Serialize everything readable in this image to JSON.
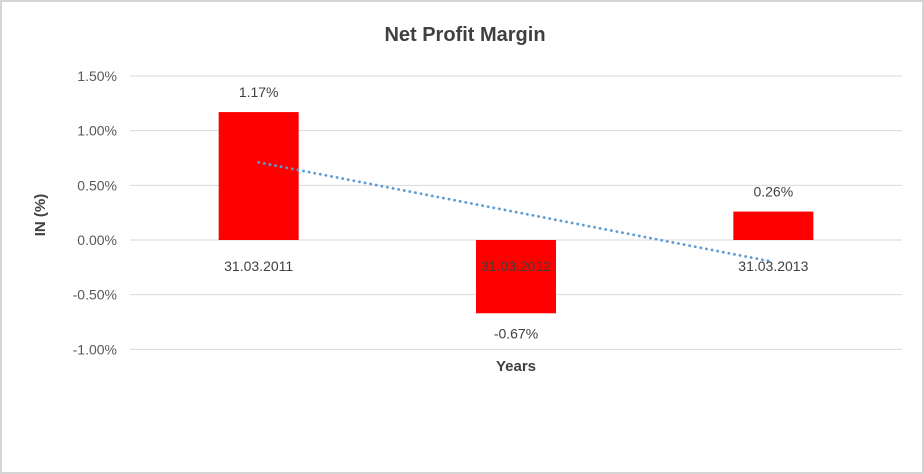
{
  "window": {
    "background": "#ffffff",
    "border_color": "#d4d4d4"
  },
  "chart_data": {
    "type": "bar",
    "title": "Net Profit Margin",
    "xlabel": "Years",
    "ylabel": "IN (%)",
    "categories": [
      "31.03.2011",
      "31.03.2012",
      "31.03.2013"
    ],
    "values": [
      1.17,
      -0.67,
      0.26
    ],
    "data_labels": [
      "1.17%",
      "-0.67%",
      "0.26%"
    ],
    "yticks": [
      1.5,
      1.0,
      0.5,
      0.0,
      -0.5,
      -1.0
    ],
    "ytick_labels": [
      "1.50%",
      "1.00%",
      "0.50%",
      "0.00%",
      "-0.50%",
      "-1.00%"
    ],
    "ylim": [
      -1.0,
      1.5
    ],
    "bar_color": "#ff0000",
    "grid_color": "#d9d9d9",
    "gridlines": true,
    "legend": "none",
    "trendline": {
      "type": "linear",
      "style": "dotted",
      "color": "#5b9bd5",
      "start_value": 0.71,
      "end_value": -0.2
    }
  }
}
